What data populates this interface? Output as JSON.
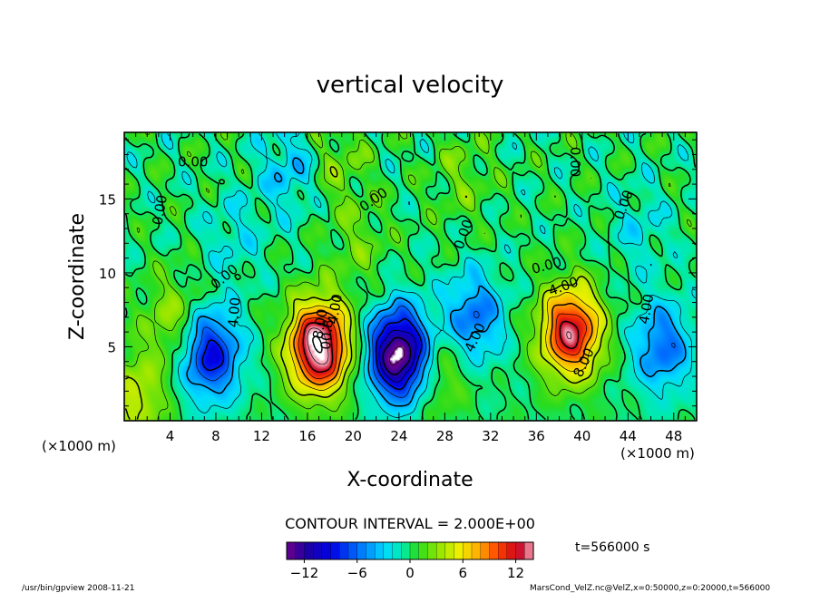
{
  "chart_data": {
    "type": "heatmap",
    "title": "vertical velocity",
    "xlabel": "X-coordinate",
    "ylabel": "Z-coordinate",
    "x_unit_label": "(×1000 m)",
    "y_unit_label": "(×1000 m)",
    "xlim": [
      0,
      50
    ],
    "ylim": [
      0,
      19.5
    ],
    "x_ticks": [
      4,
      8,
      12,
      16,
      20,
      24,
      28,
      32,
      36,
      40,
      44,
      48
    ],
    "y_ticks": [
      5,
      10,
      15
    ],
    "contour_interval_label": "CONTOUR INTERVAL = 2.000E+00",
    "contour_labels": [
      "0.00",
      "0.00",
      "0.00",
      "0.00",
      "0.00",
      "0.00",
      "0.00",
      "0.00",
      "4.00",
      "4.00",
      "4.00",
      "4.00",
      "4.00",
      "8.00",
      "8.00",
      "00.8"
    ],
    "colorbar": {
      "min": -14,
      "max": 14,
      "step": 1,
      "ticks": [
        -12,
        -6,
        0,
        6,
        12
      ]
    },
    "cells": [
      {
        "x": 1.0,
        "z": 1.5,
        "w": 4.5
      },
      {
        "x": 4.2,
        "z": 6.8,
        "w": 3.5
      },
      {
        "x": 7.5,
        "z": 4.5,
        "w": -9.0
      },
      {
        "x": 9.5,
        "z": 12.5,
        "w": -2.0
      },
      {
        "x": 17.0,
        "z": 5.0,
        "w": 16.0
      },
      {
        "x": 20.5,
        "z": 12.0,
        "w": 2.0
      },
      {
        "x": 24.0,
        "z": 4.5,
        "w": -15.0
      },
      {
        "x": 27.5,
        "z": 3.5,
        "w": 3.0
      },
      {
        "x": 30.5,
        "z": 7.0,
        "w": -6.0
      },
      {
        "x": 14.5,
        "z": 17.0,
        "w": -3.5
      },
      {
        "x": 18.5,
        "z": 17.5,
        "w": 2.5
      },
      {
        "x": 29.5,
        "z": 16.5,
        "w": 2.0
      },
      {
        "x": 39.0,
        "z": 6.0,
        "w": 13.0
      },
      {
        "x": 47.0,
        "z": 5.0,
        "w": -6.0
      },
      {
        "x": 45.0,
        "z": 13.0,
        "w": -2.0
      }
    ],
    "grid": false
  },
  "footer": {
    "program": "/usr/bin/gpview   2008-11-21",
    "file_info": "MarsCond_VelZ.nc@VelZ,x=0:50000,z=0:20000,t=566000",
    "time_label": "t=566000 s"
  },
  "colors": {
    "frame": "#000000",
    "background": "#ffffff"
  }
}
